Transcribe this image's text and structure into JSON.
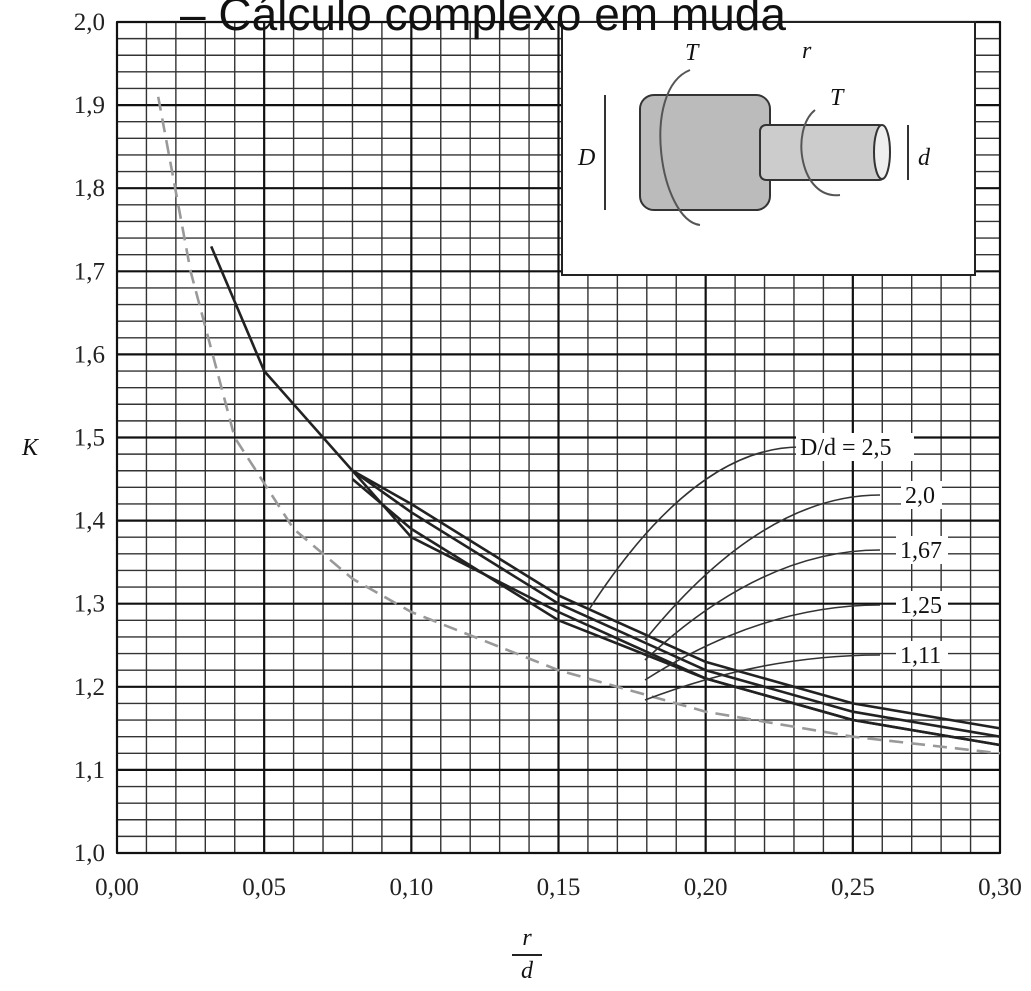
{
  "title": "– Cálculo complexo em muda",
  "chart_data": {
    "type": "line",
    "y_label": "K",
    "x_label_numerator": "r",
    "x_label_denominator": "d",
    "xlim": [
      0,
      0.3
    ],
    "ylim": [
      1.0,
      2.0
    ],
    "xticks": [
      {
        "value": 0,
        "label": "0,00"
      },
      {
        "value": 0.05,
        "label": "0,05"
      },
      {
        "value": 0.1,
        "label": "0,10"
      },
      {
        "value": 0.15,
        "label": "0,15"
      },
      {
        "value": 0.2,
        "label": "0,20"
      },
      {
        "value": 0.25,
        "label": "0,25"
      },
      {
        "value": 0.3,
        "label": "0,30"
      }
    ],
    "yticks": [
      {
        "value": 1.0,
        "label": "1,0"
      },
      {
        "value": 1.1,
        "label": "1,1"
      },
      {
        "value": 1.2,
        "label": "1,2"
      },
      {
        "value": 1.3,
        "label": "1,3"
      },
      {
        "value": 1.4,
        "label": "1,4"
      },
      {
        "value": 1.5,
        "label": "1,5"
      },
      {
        "value": 1.6,
        "label": "1,6"
      },
      {
        "value": 1.7,
        "label": "1,7"
      },
      {
        "value": 1.8,
        "label": "1,8"
      },
      {
        "value": 1.9,
        "label": "1,9"
      },
      {
        "value": 2.0,
        "label": "2,0"
      }
    ],
    "grid": true,
    "series": [
      {
        "name": "D/d  = 2,5",
        "color": "#222222",
        "x": [
          0.08,
          0.1,
          0.15,
          0.2,
          0.25,
          0.3
        ],
        "values": [
          1.46,
          1.42,
          1.31,
          1.23,
          1.18,
          1.15
        ]
      },
      {
        "name": "2,0",
        "color": "#222222",
        "x": [
          0.08,
          0.1,
          0.15,
          0.2,
          0.25,
          0.3
        ],
        "values": [
          1.46,
          1.41,
          1.3,
          1.22,
          1.17,
          1.14
        ]
      },
      {
        "name": "1,67",
        "color": "#222222",
        "x": [
          0.08,
          0.1,
          0.15,
          0.2,
          0.25,
          0.3
        ],
        "values": [
          1.45,
          1.39,
          1.28,
          1.21,
          1.16,
          1.13
        ]
      },
      {
        "name": "1,25",
        "color": "#222222",
        "x": [
          0.032,
          0.05,
          0.1,
          0.15,
          0.2,
          0.25,
          0.3
        ],
        "values": [
          1.73,
          1.58,
          1.38,
          1.29,
          1.21,
          1.16,
          1.13
        ]
      },
      {
        "name": "1,11",
        "color": "#999999",
        "dashed": true,
        "x": [
          0.014,
          0.025,
          0.04,
          0.06,
          0.08,
          0.1,
          0.15,
          0.2,
          0.25,
          0.3
        ],
        "values": [
          1.91,
          1.7,
          1.5,
          1.39,
          1.33,
          1.29,
          1.22,
          1.17,
          1.14,
          1.12
        ]
      }
    ]
  },
  "inset": {
    "labels": [
      "T",
      "r",
      "T",
      "D",
      "d"
    ]
  }
}
